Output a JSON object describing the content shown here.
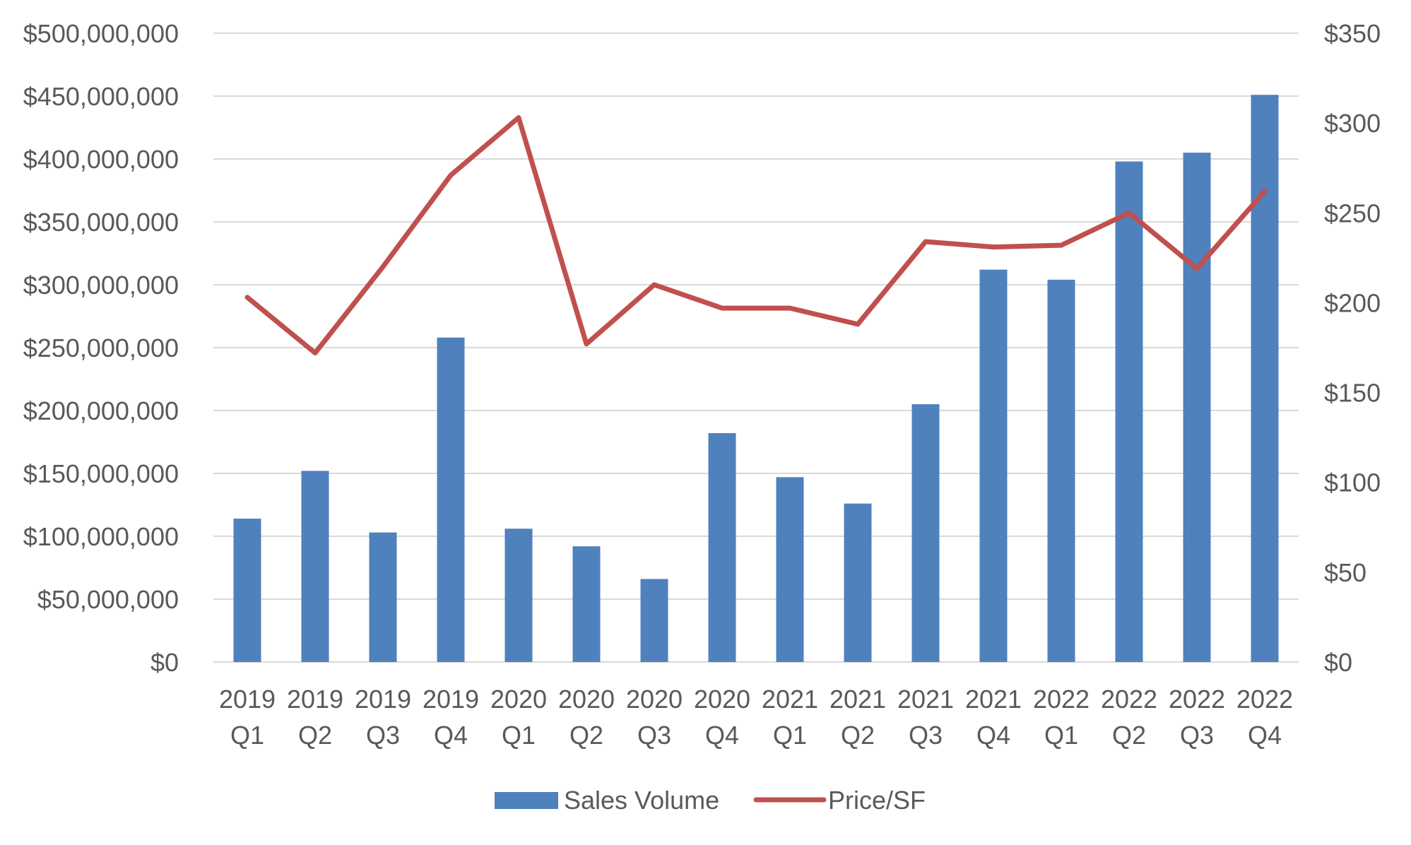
{
  "chart_data": {
    "type": "bar",
    "title": "",
    "xlabel": "",
    "ylabel": "",
    "categories": [
      [
        "2019",
        "Q1"
      ],
      [
        "2019",
        "Q2"
      ],
      [
        "2019",
        "Q3"
      ],
      [
        "2019",
        "Q4"
      ],
      [
        "2020",
        "Q1"
      ],
      [
        "2020",
        "Q2"
      ],
      [
        "2020",
        "Q3"
      ],
      [
        "2020",
        "Q4"
      ],
      [
        "2021",
        "Q1"
      ],
      [
        "2021",
        "Q2"
      ],
      [
        "2021",
        "Q3"
      ],
      [
        "2021",
        "Q4"
      ],
      [
        "2022",
        "Q1"
      ],
      [
        "2022",
        "Q2"
      ],
      [
        "2022",
        "Q3"
      ],
      [
        "2022",
        "Q4"
      ]
    ],
    "series": [
      {
        "name": "Sales Volume",
        "type": "bar",
        "axis": "left",
        "color": "#4f81bd",
        "values": [
          114000000,
          152000000,
          103000000,
          258000000,
          106000000,
          92000000,
          66000000,
          182000000,
          147000000,
          126000000,
          205000000,
          312000000,
          304000000,
          398000000,
          405000000,
          451000000
        ]
      },
      {
        "name": "Price/SF",
        "type": "line",
        "axis": "right",
        "color": "#c0504d",
        "values": [
          203,
          172,
          220,
          271,
          303,
          177,
          210,
          197,
          197,
          188,
          234,
          231,
          232,
          250,
          219,
          262
        ]
      }
    ],
    "ylim": [
      0,
      500000000
    ],
    "y_ticks": [
      "$0",
      "$50,000,000",
      "$100,000,000",
      "$150,000,000",
      "$200,000,000",
      "$250,000,000",
      "$300,000,000",
      "$350,000,000",
      "$400,000,000",
      "$450,000,000",
      "$500,000,000"
    ],
    "y2lim": [
      0,
      350
    ],
    "y2_ticks": [
      "$0",
      "$50",
      "$100",
      "$150",
      "$200",
      "$250",
      "$300",
      "$350"
    ],
    "grid": true,
    "legend_position": "bottom"
  }
}
